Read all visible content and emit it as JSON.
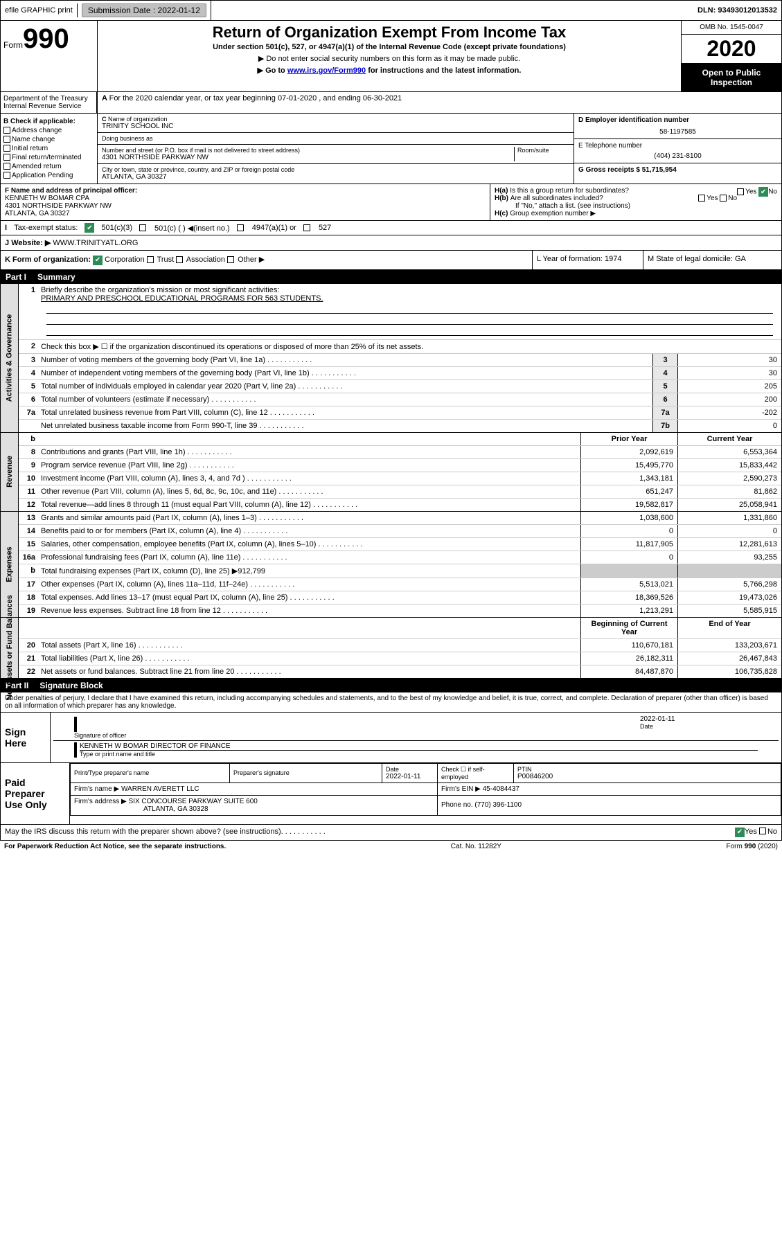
{
  "top": {
    "efile": "efile GRAPHIC print",
    "submission_label": "Submission Date : 2022-01-12",
    "dln": "DLN: 93493012013532"
  },
  "header": {
    "form_word": "Form",
    "form_number": "990",
    "title": "Return of Organization Exempt From Income Tax",
    "subtitle": "Under section 501(c), 527, or 4947(a)(1) of the Internal Revenue Code (except private foundations)",
    "note1": "▶ Do not enter social security numbers on this form as it may be made public.",
    "note2_pre": "▶ Go to ",
    "note2_link": "www.irs.gov/Form990",
    "note2_post": " for instructions and the latest information.",
    "omb": "OMB No. 1545-0047",
    "year": "2020",
    "open": "Open to Public Inspection",
    "dept": "Department of the Treasury",
    "irs": "Internal Revenue Service"
  },
  "period": {
    "text": "For the 2020 calendar year, or tax year beginning 07-01-2020    , and ending 06-30-2021"
  },
  "boxB": {
    "label": "Check if applicable:",
    "items": [
      "Address change",
      "Name change",
      "Initial return",
      "Final return/terminated",
      "Amended return",
      "Application Pending"
    ]
  },
  "boxC": {
    "name_label": "Name of organization",
    "name": "TRINITY SCHOOL INC",
    "dba_label": "Doing business as",
    "addr_label": "Number and street (or P.O. box if mail is not delivered to street address)",
    "room_label": "Room/suite",
    "addr": "4301 NORTHSIDE PARKWAY NW",
    "city_label": "City or town, state or province, country, and ZIP or foreign postal code",
    "city": "ATLANTA, GA  30327"
  },
  "boxD": {
    "label": "D Employer identification number",
    "value": "58-1197585"
  },
  "boxE": {
    "label": "E Telephone number",
    "value": "(404) 231-8100"
  },
  "boxG": {
    "label": "G Gross receipts $ 51,715,954"
  },
  "boxF": {
    "label": "F  Name and address of principal officer:",
    "name": "KENNETH W BOMAR CPA",
    "addr1": "4301 NORTHSIDE PARKWAY NW",
    "addr2": "ATLANTA, GA  30327"
  },
  "boxH": {
    "a": "Is this a group return for subordinates?",
    "b": "Are all subordinates included?",
    "note": "If \"No,\" attach a list. (see instructions)",
    "c": "Group exemption number ▶",
    "yes": "Yes",
    "no": "No"
  },
  "taxExempt": {
    "label": "Tax-exempt status:",
    "opt1": "501(c)(3)",
    "opt2": "501(c) (  ) ◀(insert no.)",
    "opt3": "4947(a)(1) or",
    "opt4": "527"
  },
  "website": {
    "label": "Website: ▶",
    "value": "WWW.TRINITYATL.ORG"
  },
  "rowK": {
    "label": "K Form of organization:",
    "opts": [
      "Corporation",
      "Trust",
      "Association",
      "Other ▶"
    ],
    "L": "L Year of formation: 1974",
    "M": "M State of legal domicile: GA"
  },
  "part1": {
    "header_num": "Part I",
    "header_title": "Summary",
    "line1_label": "Briefly describe the organization's mission or most significant activities:",
    "line1_text": "PRIMARY AND PRESCHOOL EDUCATIONAL PROGRAMS FOR 563 STUDENTS.",
    "line2": "Check this box ▶ ☐  if the organization discontinued its operations or disposed of more than 25% of its net assets.",
    "rows_gov": [
      {
        "n": "3",
        "t": "Number of voting members of the governing body (Part VI, line 1a)",
        "box": "3",
        "v": "30"
      },
      {
        "n": "4",
        "t": "Number of independent voting members of the governing body (Part VI, line 1b)",
        "box": "4",
        "v": "30"
      },
      {
        "n": "5",
        "t": "Total number of individuals employed in calendar year 2020 (Part V, line 2a)",
        "box": "5",
        "v": "205"
      },
      {
        "n": "6",
        "t": "Total number of volunteers (estimate if necessary)",
        "box": "6",
        "v": "200"
      },
      {
        "n": "7a",
        "t": "Total unrelated business revenue from Part VIII, column (C), line 12",
        "box": "7a",
        "v": "-202"
      },
      {
        "n": "",
        "t": "Net unrelated business taxable income from Form 990-T, line 39",
        "box": "7b",
        "v": "0"
      }
    ],
    "col_prior": "Prior Year",
    "col_current": "Current Year",
    "rows_rev": [
      {
        "n": "8",
        "t": "Contributions and grants (Part VIII, line 1h)",
        "p": "2,092,619",
        "c": "6,553,364"
      },
      {
        "n": "9",
        "t": "Program service revenue (Part VIII, line 2g)",
        "p": "15,495,770",
        "c": "15,833,442"
      },
      {
        "n": "10",
        "t": "Investment income (Part VIII, column (A), lines 3, 4, and 7d )",
        "p": "1,343,181",
        "c": "2,590,273"
      },
      {
        "n": "11",
        "t": "Other revenue (Part VIII, column (A), lines 5, 6d, 8c, 9c, 10c, and 11e)",
        "p": "651,247",
        "c": "81,862"
      },
      {
        "n": "12",
        "t": "Total revenue—add lines 8 through 11 (must equal Part VIII, column (A), line 12)",
        "p": "19,582,817",
        "c": "25,058,941"
      }
    ],
    "rows_exp": [
      {
        "n": "13",
        "t": "Grants and similar amounts paid (Part IX, column (A), lines 1–3)",
        "p": "1,038,600",
        "c": "1,331,860"
      },
      {
        "n": "14",
        "t": "Benefits paid to or for members (Part IX, column (A), line 4)",
        "p": "0",
        "c": "0"
      },
      {
        "n": "15",
        "t": "Salaries, other compensation, employee benefits (Part IX, column (A), lines 5–10)",
        "p": "11,817,905",
        "c": "12,281,613"
      },
      {
        "n": "16a",
        "t": "Professional fundraising fees (Part IX, column (A), line 11e)",
        "p": "0",
        "c": "93,255"
      },
      {
        "n": "b",
        "t": "Total fundraising expenses (Part IX, column (D), line 25) ▶912,799",
        "p": "",
        "c": ""
      },
      {
        "n": "17",
        "t": "Other expenses (Part IX, column (A), lines 11a–11d, 11f–24e)",
        "p": "5,513,021",
        "c": "5,766,298"
      },
      {
        "n": "18",
        "t": "Total expenses. Add lines 13–17 (must equal Part IX, column (A), line 25)",
        "p": "18,369,526",
        "c": "19,473,026"
      },
      {
        "n": "19",
        "t": "Revenue less expenses. Subtract line 18 from line 12",
        "p": "1,213,291",
        "c": "5,585,915"
      }
    ],
    "col_begin": "Beginning of Current Year",
    "col_end": "End of Year",
    "rows_net": [
      {
        "n": "20",
        "t": "Total assets (Part X, line 16)",
        "p": "110,670,181",
        "c": "133,203,671"
      },
      {
        "n": "21",
        "t": "Total liabilities (Part X, line 26)",
        "p": "26,182,311",
        "c": "26,467,843"
      },
      {
        "n": "22",
        "t": "Net assets or fund balances. Subtract line 21 from line 20",
        "p": "84,487,870",
        "c": "106,735,828"
      }
    ],
    "side_gov": "Activities & Governance",
    "side_rev": "Revenue",
    "side_exp": "Expenses",
    "side_net": "Net Assets or Fund Balances"
  },
  "part2": {
    "header_num": "Part II",
    "header_title": "Signature Block",
    "penalty": "Under penalties of perjury, I declare that I have examined this return, including accompanying schedules and statements, and to the best of my knowledge and belief, it is true, correct, and complete. Declaration of preparer (other than officer) is based on all information of which preparer has any knowledge.",
    "sign_here": "Sign Here",
    "sig_officer_label": "Signature of officer",
    "date_label": "Date",
    "sig_date": "2022-01-11",
    "officer_name": "KENNETH W BOMAR  DIRECTOR OF FINANCE",
    "type_label": "Type or print name and title",
    "paid_label": "Paid Preparer Use Only",
    "prep_name_label": "Print/Type preparer's name",
    "prep_sig_label": "Preparer's signature",
    "prep_date_label": "Date",
    "prep_date": "2022-01-11",
    "self_emp": "Check ☐ if self-employed",
    "ptin_label": "PTIN",
    "ptin": "P00846200",
    "firm_name_label": "Firm's name     ▶",
    "firm_name": "WARREN AVERETT LLC",
    "firm_ein_label": "Firm's EIN ▶",
    "firm_ein": "45-4084437",
    "firm_addr_label": "Firm's address ▶",
    "firm_addr1": "SIX CONCOURSE PARKWAY SUITE 600",
    "firm_addr2": "ATLANTA, GA  30328",
    "phone_label": "Phone no.",
    "phone": "(770) 396-1100",
    "discuss": "May the IRS discuss this return with the preparer shown above? (see instructions)",
    "yes": "Yes",
    "no": "No"
  },
  "footer": {
    "left": "For Paperwork Reduction Act Notice, see the separate instructions.",
    "mid": "Cat. No. 11282Y",
    "right": "Form 990 (2020)"
  }
}
